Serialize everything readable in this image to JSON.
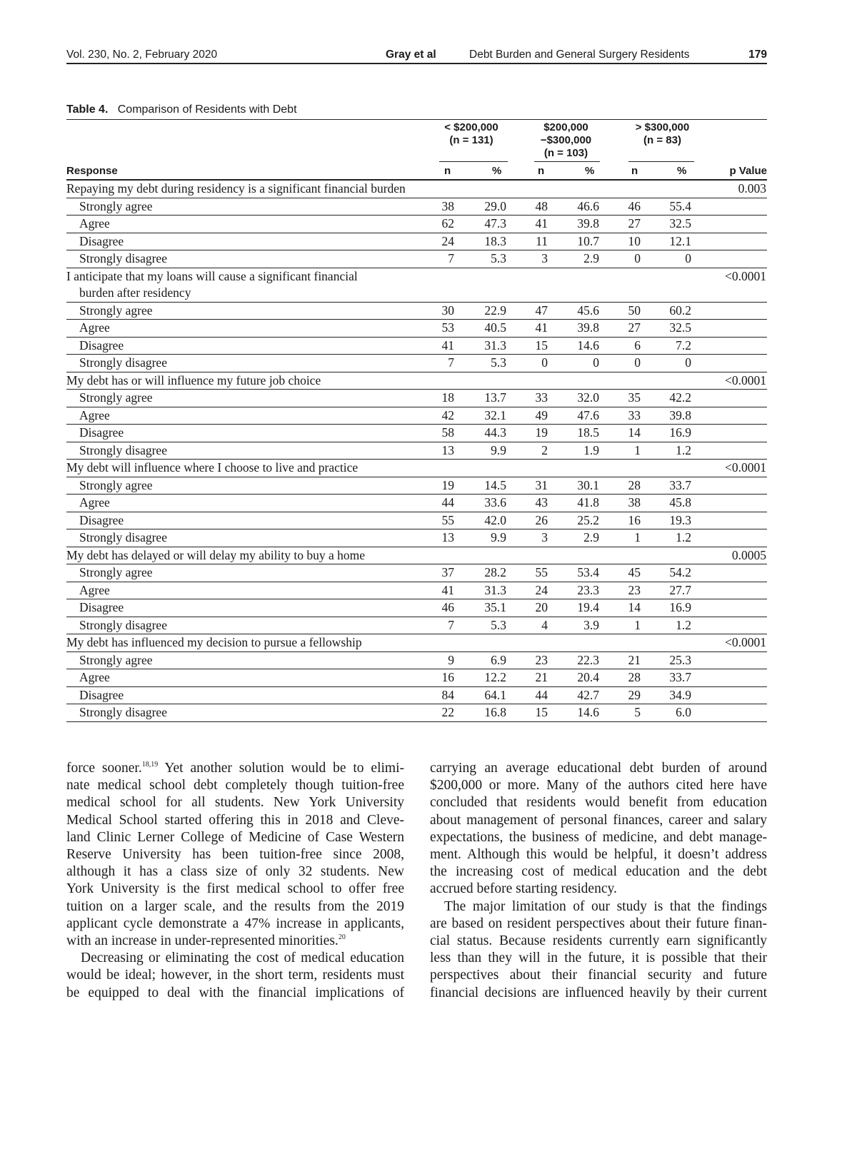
{
  "running_head": {
    "journal": "Vol. 230, No. 2, February 2020",
    "authors": "Gray et al",
    "short_title": "Debt Burden and General Surgery Residents",
    "page": "179"
  },
  "table": {
    "label": "Table 4.",
    "title": "Comparison of Residents with Debt",
    "groups": [
      {
        "line1": "",
        "line2": "< $200,000",
        "line3": "(n = 131)"
      },
      {
        "line1": "$200,000",
        "line2": "−$300,000",
        "line3": "(n = 103)"
      },
      {
        "line1": "",
        "line2": "> $300,000",
        "line3": "(n = 83)"
      }
    ],
    "col_response": "Response",
    "col_n": "n",
    "col_pct": "%",
    "col_p": "p Value",
    "sections": [
      {
        "question": [
          "Repaying my debt during residency is a significant financial burden"
        ],
        "p": "0.003",
        "rows": [
          [
            "Strongly agree",
            "38",
            "29.0",
            "48",
            "46.6",
            "46",
            "55.4"
          ],
          [
            "Agree",
            "62",
            "47.3",
            "41",
            "39.8",
            "27",
            "32.5"
          ],
          [
            "Disagree",
            "24",
            "18.3",
            "11",
            "10.7",
            "10",
            "12.1"
          ],
          [
            "Strongly disagree",
            "7",
            "5.3",
            "3",
            "2.9",
            "0",
            "0"
          ]
        ]
      },
      {
        "question": [
          "I anticipate that my loans will cause a significant financial",
          "burden after residency"
        ],
        "p": "<0.0001",
        "rows": [
          [
            "Strongly agree",
            "30",
            "22.9",
            "47",
            "45.6",
            "50",
            "60.2"
          ],
          [
            "Agree",
            "53",
            "40.5",
            "41",
            "39.8",
            "27",
            "32.5"
          ],
          [
            "Disagree",
            "41",
            "31.3",
            "15",
            "14.6",
            "6",
            "7.2"
          ],
          [
            "Strongly disagree",
            "7",
            "5.3",
            "0",
            "0",
            "0",
            "0"
          ]
        ]
      },
      {
        "question": [
          "My debt has or will influence my future job choice"
        ],
        "p": "<0.0001",
        "rows": [
          [
            "Strongly agree",
            "18",
            "13.7",
            "33",
            "32.0",
            "35",
            "42.2"
          ],
          [
            "Agree",
            "42",
            "32.1",
            "49",
            "47.6",
            "33",
            "39.8"
          ],
          [
            "Disagree",
            "58",
            "44.3",
            "19",
            "18.5",
            "14",
            "16.9"
          ],
          [
            "Strongly disagree",
            "13",
            "9.9",
            "2",
            "1.9",
            "1",
            "1.2"
          ]
        ]
      },
      {
        "question": [
          "My debt will influence where I choose to live and practice"
        ],
        "p": "<0.0001",
        "rows": [
          [
            "Strongly agree",
            "19",
            "14.5",
            "31",
            "30.1",
            "28",
            "33.7"
          ],
          [
            "Agree",
            "44",
            "33.6",
            "43",
            "41.8",
            "38",
            "45.8"
          ],
          [
            "Disagree",
            "55",
            "42.0",
            "26",
            "25.2",
            "16",
            "19.3"
          ],
          [
            "Strongly disagree",
            "13",
            "9.9",
            "3",
            "2.9",
            "1",
            "1.2"
          ]
        ]
      },
      {
        "question": [
          "My debt has delayed or will delay my ability to buy a home"
        ],
        "p": "0.0005",
        "rows": [
          [
            "Strongly agree",
            "37",
            "28.2",
            "55",
            "53.4",
            "45",
            "54.2"
          ],
          [
            "Agree",
            "41",
            "31.3",
            "24",
            "23.3",
            "23",
            "27.7"
          ],
          [
            "Disagree",
            "46",
            "35.1",
            "20",
            "19.4",
            "14",
            "16.9"
          ],
          [
            "Strongly disagree",
            "7",
            "5.3",
            "4",
            "3.9",
            "1",
            "1.2"
          ]
        ]
      },
      {
        "question": [
          "My debt has influenced my decision to pursue a fellowship"
        ],
        "p": "<0.0001",
        "rows": [
          [
            "Strongly agree",
            "9",
            "6.9",
            "23",
            "22.3",
            "21",
            "25.3"
          ],
          [
            "Agree",
            "16",
            "12.2",
            "21",
            "20.4",
            "28",
            "33.7"
          ],
          [
            "Disagree",
            "84",
            "64.1",
            "44",
            "42.7",
            "29",
            "34.9"
          ],
          [
            "Strongly disagree",
            "22",
            "16.8",
            "15",
            "14.6",
            "5",
            "6.0"
          ]
        ]
      }
    ]
  },
  "body": {
    "left": [
      {
        "indent": false,
        "lines": [
          [
            "force sooner.",
            {
              "sup": "18,19"
            },
            " Yet another solution would be to elimi-"
          ],
          [
            "nate medical school debt completely though tuition-free"
          ],
          [
            "medical school for all students. New York University"
          ],
          [
            "Medical School started offering this in 2018 and Cleve-"
          ],
          [
            "land Clinic Lerner College of Medicine of Case Western"
          ],
          [
            "Reserve University has been tuition-free since 2008,"
          ],
          [
            "although it has a class size of only 32 students. New"
          ],
          [
            "York University is the first medical school to offer free"
          ],
          [
            "tuition on a larger scale, and the results from the 2019"
          ],
          [
            "applicant cycle demonstrate a 47% increase in applicants,"
          ],
          [
            "with an increase in under-represented minorities.",
            {
              "sup": "20"
            }
          ]
        ]
      },
      {
        "indent": true,
        "lines": [
          [
            "Decreasing or eliminating the cost of medical education"
          ],
          [
            "would be ideal; however, in the short term, residents must"
          ],
          [
            "be equipped to deal with the financial implications of"
          ]
        ],
        "open": true
      }
    ],
    "right": [
      {
        "indent": false,
        "lines": [
          [
            "carrying an average educational debt burden of around"
          ],
          [
            "$200,000 or more. Many of the authors cited here have"
          ],
          [
            "concluded that residents would benefit from education"
          ],
          [
            "about management of personal finances, career and salary"
          ],
          [
            "expectations, the business of medicine, and debt manage-"
          ],
          [
            "ment. Although this would be helpful, it doesn’t address"
          ],
          [
            "the increasing cost of medical education and the debt"
          ],
          [
            "accrued before starting residency."
          ]
        ]
      },
      {
        "indent": true,
        "lines": [
          [
            "The major limitation of our study is that the findings"
          ],
          [
            "are based on resident perspectives about their future finan-"
          ],
          [
            "cial status. Because residents currently earn significantly"
          ],
          [
            "less than they will in the future, it is possible that their"
          ],
          [
            "perspectives about their financial security and future"
          ],
          [
            "financial decisions are influenced heavily by their current"
          ]
        ],
        "open": true
      }
    ]
  }
}
